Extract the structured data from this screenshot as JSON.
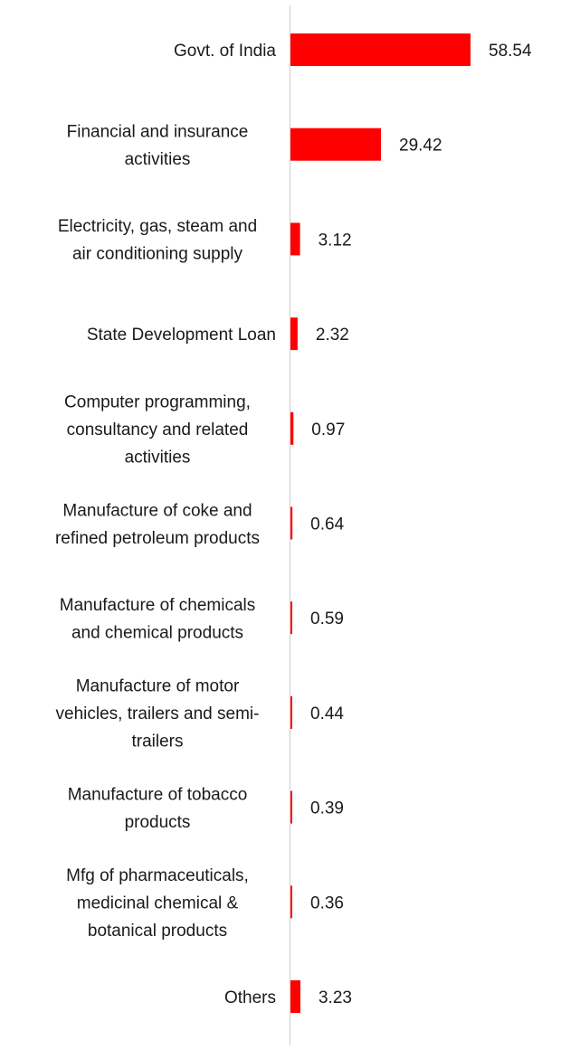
{
  "chart_data": {
    "type": "bar",
    "orientation": "horizontal",
    "title": "",
    "xlabel": "",
    "ylabel": "",
    "xlim": [
      0,
      58.54
    ],
    "grid": false,
    "legend": "none",
    "bar_color": "#ff0000",
    "axis_color": "#d9d9d9",
    "categories": [
      [
        "Govt. of India"
      ],
      [
        "Financial and insurance",
        "activities"
      ],
      [
        "Electricity, gas, steam and",
        "air conditioning supply"
      ],
      [
        "State Development Loan"
      ],
      [
        "Computer programming,",
        "consultancy and related",
        "activities"
      ],
      [
        "Manufacture of coke and",
        "refined petroleum products"
      ],
      [
        "Manufacture of chemicals",
        "and chemical products"
      ],
      [
        "Manufacture of motor",
        "vehicles, trailers and semi-",
        "trailers"
      ],
      [
        "Manufacture of tobacco",
        "products"
      ],
      [
        "Mfg of pharmaceuticals,",
        "medicinal chemical &",
        "botanical products"
      ],
      [
        "Others"
      ]
    ],
    "values": [
      58.54,
      29.42,
      3.12,
      2.32,
      0.97,
      0.64,
      0.59,
      0.44,
      0.39,
      0.36,
      3.23
    ],
    "value_labels": [
      "58.54",
      "29.42",
      "3.12",
      "2.32",
      "0.97",
      "0.64",
      "0.59",
      "0.44",
      "0.39",
      "0.36",
      "3.23"
    ]
  }
}
